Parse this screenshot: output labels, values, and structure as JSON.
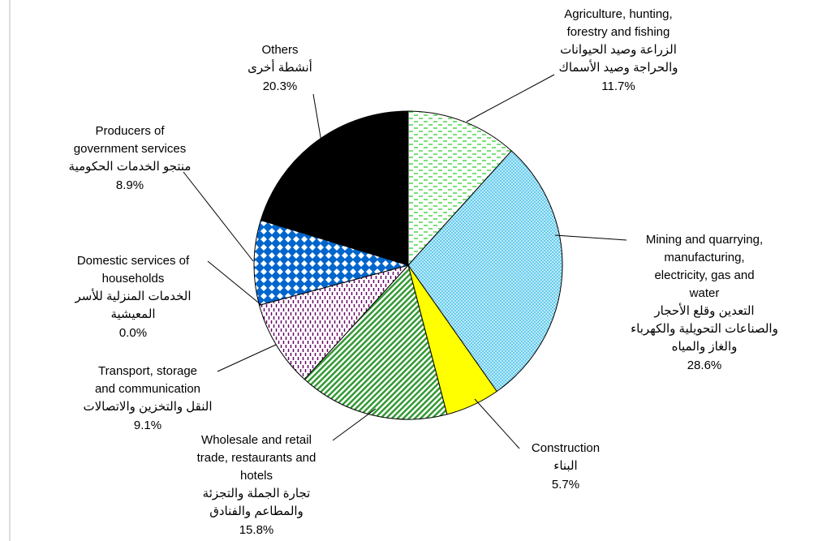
{
  "chart_data": {
    "type": "pie",
    "categories": [
      [
        "Agriculture, hunting,",
        "forestry and fishing"
      ],
      [
        "Mining and quarrying,",
        "manufacturing,",
        "electricity, gas and",
        "water"
      ],
      [
        "Construction"
      ],
      [
        "Wholesale and retail",
        "trade, restaurants and",
        "hotels"
      ],
      [
        "Transport, storage",
        "and communication"
      ],
      [
        "Domestic services of",
        "households"
      ],
      [
        "Producers of",
        "government services"
      ],
      [
        "Others"
      ]
    ],
    "arabic_labels": [
      [
        "الزراعة وصيد الحيوانات",
        "والحراجة وصيد الأسماك"
      ],
      [
        "التعدين وقلع الأحجار",
        "والصناعات التحويلية والكهرباء",
        "والغاز والمياه"
      ],
      [
        "البناء"
      ],
      [
        "تجارة الجملة والتجزئة",
        "والمطاعم والفنادق"
      ],
      [
        "النقل والتخزين والاتصالات"
      ],
      [
        "الخدمات المنزلية للأسر",
        "المعيشية"
      ],
      [
        "منتجو الخدمات الحكومية"
      ],
      [
        "أنشطة أخرى"
      ]
    ],
    "values": [
      11.7,
      28.6,
      5.7,
      15.8,
      9.1,
      0.0,
      8.9,
      20.3
    ],
    "value_labels": [
      "11.7%",
      "28.6%",
      "5.7%",
      "15.8%",
      "9.1%",
      "0.0%",
      "8.9%",
      "20.3%"
    ],
    "colors": [
      "#22cc22",
      "#66ccee",
      "#ffff00",
      "#339933",
      "#660066",
      "#333399",
      "#0066cc",
      "#000000"
    ],
    "patterns": [
      "dashes",
      "dots",
      "solid",
      "diagonal",
      "vertical-dashes",
      "solid",
      "checker",
      "solid"
    ]
  }
}
